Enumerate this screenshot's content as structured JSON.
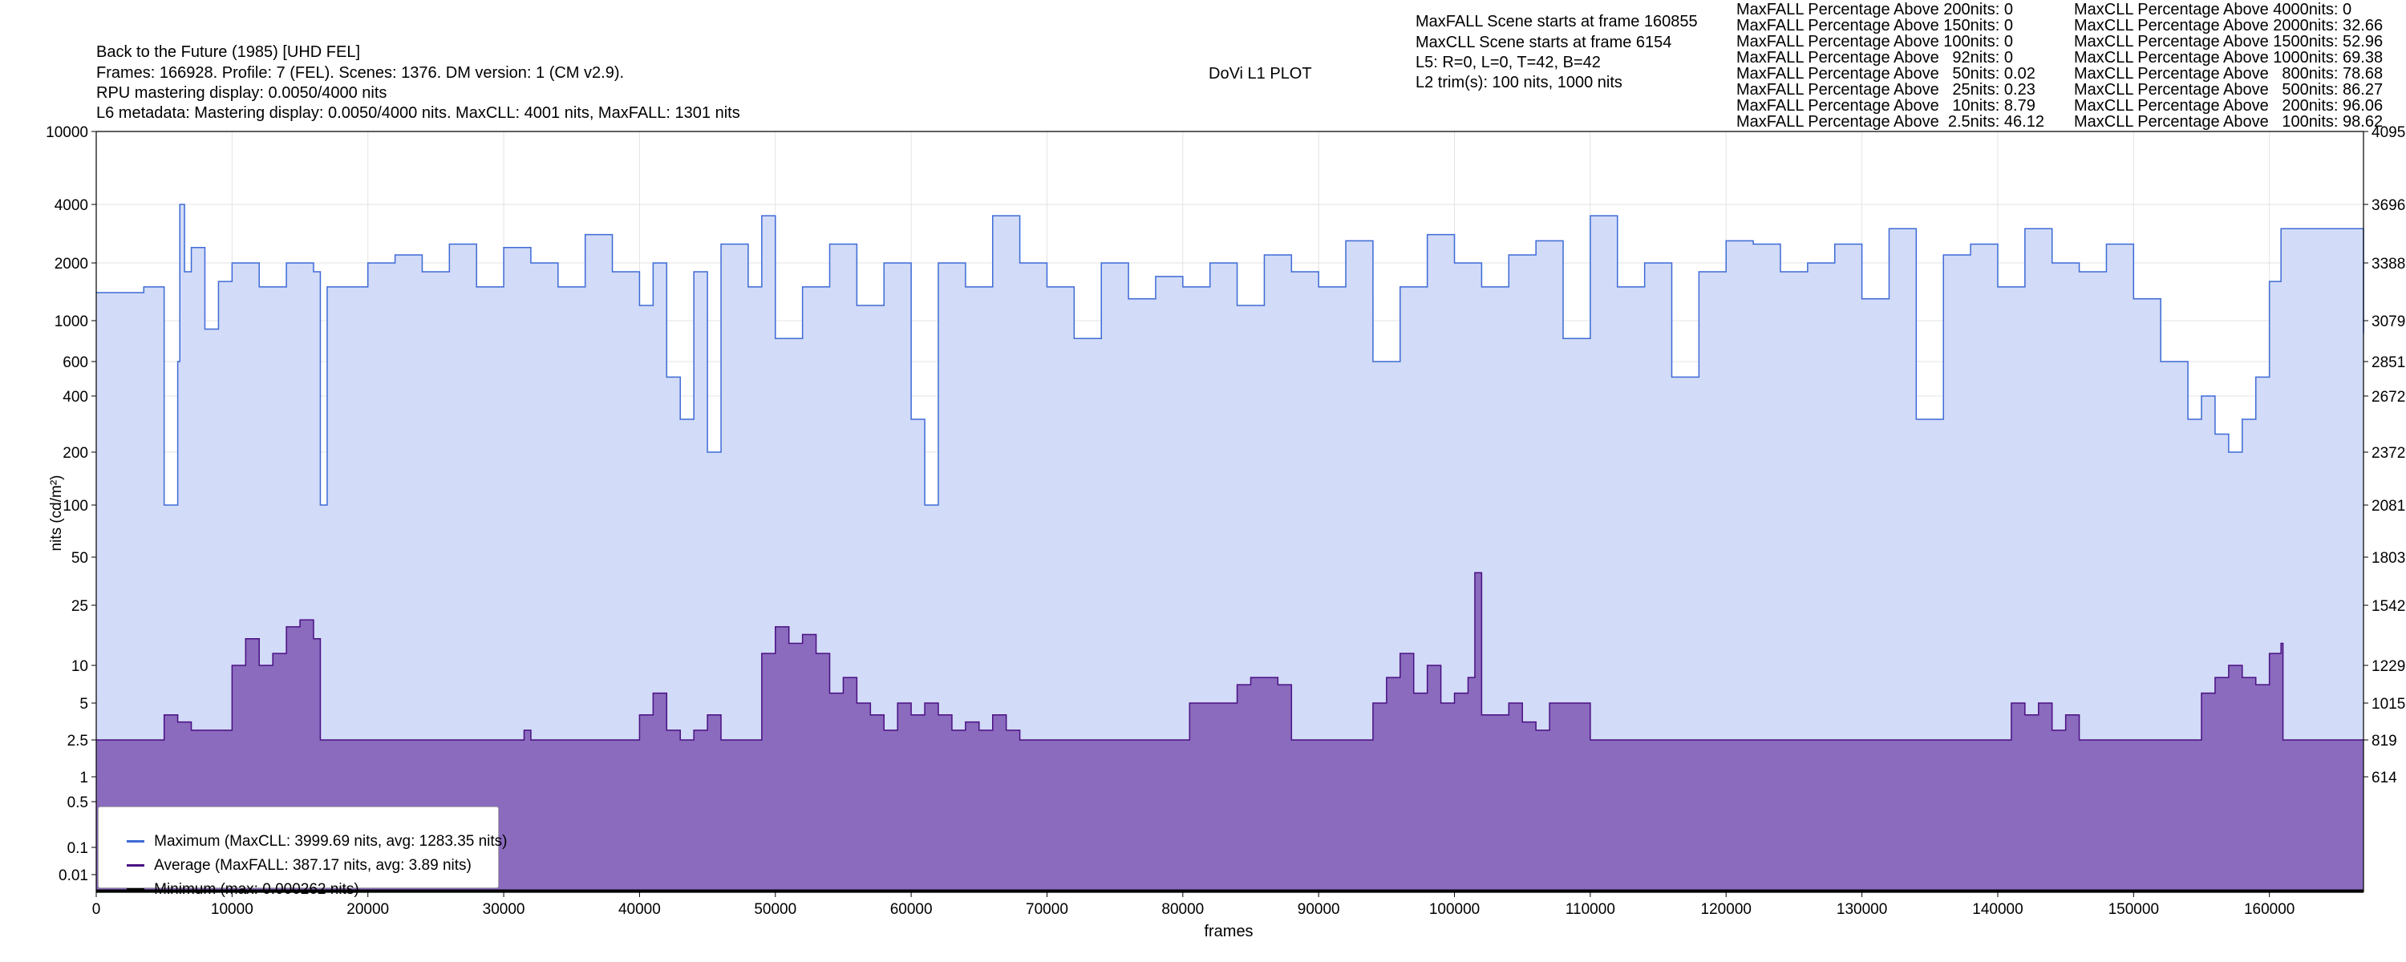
{
  "header": {
    "title": "Back to the Future (1985) [UHD FEL]",
    "line2": "Frames: 166928. Profile: 7 (FEL). Scenes: 1376. DM version: 1 (CM v2.9).",
    "line3": "RPU mastering display: 0.0050/4000 nits",
    "line4": "L6 metadata: Mastering display: 0.0050/4000 nits. MaxCLL: 4001 nits, MaxFALL: 1301 nits",
    "plot_title": "DoVi L1 PLOT"
  },
  "info": [
    "MaxFALL Scene starts at frame 160855",
    "MaxCLL Scene starts at frame 6154",
    "L5: R=0, L=0, T=42, B=42",
    "L2 trim(s): 100 nits, 1000 nits"
  ],
  "maxfall_stats": [
    "MaxFALL Percentage Above 200nits: 0",
    "MaxFALL Percentage Above 150nits: 0",
    "MaxFALL Percentage Above 100nits: 0",
    "MaxFALL Percentage Above   92nits: 0",
    "MaxFALL Percentage Above   50nits: 0.02",
    "MaxFALL Percentage Above   25nits: 0.23",
    "MaxFALL Percentage Above   10nits: 8.79",
    "MaxFALL Percentage Above  2.5nits: 46.12"
  ],
  "maxcll_stats": [
    "MaxCLL Percentage Above 4000nits: 0",
    "MaxCLL Percentage Above 2000nits: 32.66",
    "MaxCLL Percentage Above 1500nits: 52.96",
    "MaxCLL Percentage Above 1000nits: 69.38",
    "MaxCLL Percentage Above   800nits: 78.68",
    "MaxCLL Percentage Above   500nits: 86.27",
    "MaxCLL Percentage Above   200nits: 96.06",
    "MaxCLL Percentage Above   100nits: 98.62"
  ],
  "legend": {
    "max": "Maximum (MaxCLL: 3999.69 nits, avg: 1283.35 nits)",
    "avg": "Average (MaxFALL: 387.17 nits, avg: 3.89 nits)",
    "min": "Minimum (max: 0.000262 nits)"
  },
  "colors": {
    "max_line": "#3d6ad6",
    "max_fill": "#d2dbf7",
    "avg_line": "#4b0f84",
    "avg_fill": "#8a6bbd",
    "min_line": "#000000"
  },
  "chart_data": {
    "type": "area",
    "xlabel": "frames",
    "ylabel": "nits (cd/m²)",
    "y_scale": "log",
    "xlim": [
      0,
      166928
    ],
    "ylim": [
      0.005,
      10000
    ],
    "x_ticks": [
      0,
      10000,
      20000,
      30000,
      40000,
      50000,
      60000,
      70000,
      80000,
      90000,
      100000,
      110000,
      120000,
      130000,
      140000,
      150000,
      160000
    ],
    "y_ticks": [
      "10000",
      "4000",
      "2000",
      "1000",
      "600",
      "400",
      "200",
      "100",
      "50",
      "25",
      "10",
      "5",
      "2.5",
      "1",
      "0.5",
      "0.1",
      "0.01"
    ],
    "y_tick_values": [
      10000,
      4000,
      2000,
      1000,
      600,
      400,
      200,
      100,
      50,
      25,
      10,
      5,
      2.5,
      1,
      0.5,
      0.1,
      0.01
    ],
    "right_ticks": [
      "4095",
      "3696",
      "3388",
      "3079",
      "2851",
      "2672",
      "2372",
      "2081",
      "1803",
      "1542",
      "1229",
      "1015",
      "819",
      "614"
    ],
    "right_tick_values": [
      10000,
      4000,
      2000,
      1000,
      600,
      400,
      200,
      100,
      50,
      25,
      10,
      5,
      2.5,
      1
    ],
    "grid": true,
    "legend_position": "bottom-left",
    "series": [
      {
        "name": "Maximum (MaxCLL: 3999.69 nits, avg: 1283.35 nits)",
        "x": [
          0,
          3500,
          4200,
          5000,
          6000,
          6154,
          6500,
          7000,
          8000,
          9000,
          10000,
          12000,
          14000,
          16000,
          16500,
          17000,
          20000,
          22000,
          24000,
          26000,
          28000,
          30000,
          32000,
          34000,
          36000,
          38000,
          40000,
          41000,
          42000,
          43000,
          44000,
          45000,
          46000,
          48000,
          49000,
          50000,
          52000,
          54000,
          56000,
          58000,
          60000,
          61000,
          62000,
          64000,
          66000,
          68000,
          70000,
          72000,
          74000,
          76000,
          78000,
          80000,
          82000,
          84000,
          86000,
          88000,
          90000,
          92000,
          94000,
          96000,
          98000,
          100000,
          102000,
          104000,
          106000,
          108000,
          110000,
          112000,
          114000,
          116000,
          118000,
          120000,
          122000,
          124000,
          126000,
          128000,
          130000,
          132000,
          134000,
          136000,
          138000,
          140000,
          142000,
          144000,
          146000,
          148000,
          150000,
          152000,
          154000,
          155000,
          156000,
          157000,
          158000,
          159000,
          160000,
          160855,
          166928
        ],
        "values": [
          1400,
          1500,
          1500,
          100,
          600,
          3999,
          1800,
          2400,
          900,
          1600,
          2000,
          1500,
          2000,
          1800,
          100,
          1500,
          2000,
          2200,
          1800,
          2500,
          1500,
          2400,
          2000,
          1500,
          2800,
          1800,
          1200,
          2000,
          500,
          300,
          1800,
          200,
          2500,
          1500,
          3500,
          800,
          1500,
          2500,
          1200,
          2000,
          300,
          100,
          2000,
          1500,
          3500,
          2000,
          1500,
          800,
          2000,
          1300,
          1700,
          1500,
          2000,
          1200,
          2200,
          1800,
          1500,
          2600,
          600,
          1500,
          2800,
          2000,
          1500,
          2200,
          2600,
          800,
          3500,
          1500,
          2000,
          500,
          1800,
          2600,
          2500,
          1800,
          2000,
          2500,
          1300,
          3000,
          300,
          2200,
          2500,
          1500,
          3000,
          2000,
          1800,
          2500,
          1300,
          600,
          300,
          400,
          250,
          200,
          300,
          500,
          1600,
          3000,
          850
        ]
      },
      {
        "name": "Average (MaxFALL: 387.17 nits, avg: 3.89 nits)",
        "x": [
          0,
          4000,
          5000,
          6000,
          7000,
          8000,
          9000,
          10000,
          11000,
          12000,
          13000,
          14000,
          15000,
          16000,
          16500,
          17000,
          20000,
          25000,
          30000,
          31500,
          32000,
          35000,
          39000,
          40000,
          41000,
          42000,
          43000,
          44000,
          45000,
          46000,
          47000,
          48000,
          49000,
          50000,
          51000,
          52000,
          53000,
          54000,
          55000,
          56000,
          57000,
          58000,
          59000,
          60000,
          61000,
          62000,
          63000,
          64000,
          65000,
          66000,
          67000,
          68000,
          70000,
          75000,
          80000,
          80500,
          81000,
          84000,
          85000,
          87000,
          88000,
          90000,
          92000,
          94000,
          95000,
          96000,
          97000,
          98000,
          99000,
          100000,
          101000,
          101500,
          102000,
          104000,
          105000,
          106000,
          107000,
          108000,
          110000,
          115000,
          120000,
          125000,
          130000,
          135000,
          140000,
          141000,
          142000,
          143000,
          144000,
          145000,
          146000,
          148000,
          150000,
          152000,
          154000,
          155000,
          156000,
          157000,
          158000,
          159000,
          160000,
          160855,
          161000,
          166928
        ],
        "values": [
          2.5,
          2.5,
          4,
          3.5,
          3,
          3,
          3,
          10,
          15,
          10,
          12,
          18,
          20,
          15,
          2.5,
          2.5,
          2.5,
          2.5,
          2.5,
          3,
          2.5,
          2.5,
          2.5,
          4,
          6,
          3,
          2.5,
          3,
          4,
          2.5,
          2.5,
          2.5,
          12,
          18,
          14,
          16,
          12,
          6,
          8,
          5,
          4,
          3,
          5,
          4,
          5,
          4,
          3,
          3.5,
          3,
          4,
          3,
          2.5,
          2.5,
          2.5,
          2.5,
          5,
          5,
          7,
          8,
          7,
          2.5,
          2.5,
          2.5,
          5,
          8,
          12,
          6,
          10,
          5,
          6,
          8,
          40,
          4,
          5,
          3.5,
          3,
          5,
          5,
          2.5,
          2.5,
          2.5,
          2.5,
          2.5,
          2.5,
          2.5,
          5,
          4,
          5,
          3,
          4,
          2.5,
          2.5,
          2.5,
          2.5,
          2.5,
          6,
          8,
          10,
          8,
          7,
          12,
          14,
          2.5,
          2.5
        ]
      },
      {
        "name": "Minimum (max: 0.000262 nits)",
        "x": [
          0,
          166928
        ],
        "values": [
          0.000262,
          0.000262
        ]
      }
    ]
  }
}
